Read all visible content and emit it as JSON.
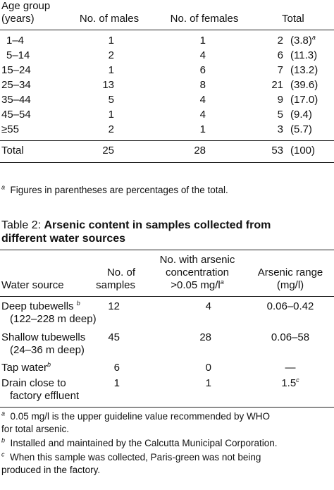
{
  "table1": {
    "headers": {
      "age_line1": "Age group",
      "age_line2": "(years)",
      "males": "No. of males",
      "females": "No. of females",
      "total": "Total"
    },
    "rows": [
      {
        "age": "1–4",
        "males": "1",
        "females": "1",
        "total": "2",
        "pct": "(3.8)",
        "pct_note": "a"
      },
      {
        "age": "5–14",
        "males": "2",
        "females": "4",
        "total": "6",
        "pct": "(11.3)",
        "pct_note": ""
      },
      {
        "age": "15–24",
        "males": "1",
        "females": "6",
        "total": "7",
        "pct": "(13.2)",
        "pct_note": ""
      },
      {
        "age": "25–34",
        "males": "13",
        "females": "8",
        "total": "21",
        "pct": "(39.6)",
        "pct_note": ""
      },
      {
        "age": "35–44",
        "males": "5",
        "females": "4",
        "total": "9",
        "pct": "(17.0)",
        "pct_note": ""
      },
      {
        "age": "45–54",
        "males": "1",
        "females": "4",
        "total": "5",
        "pct": "(9.4)",
        "pct_note": ""
      },
      {
        "age": "≥55",
        "males": "2",
        "females": "1",
        "total": "3",
        "pct": "(5.7)",
        "pct_note": ""
      }
    ],
    "total_row": {
      "label": "Total",
      "males": "25",
      "females": "28",
      "total": "53",
      "pct": "(100)"
    },
    "footnote_mark": "a",
    "footnote": "Figures in parentheses are percentages of the total."
  },
  "table2": {
    "caption_prefix": "Table 2: ",
    "caption_bold_line1": "Arsenic content in samples collected from",
    "caption_bold_line2": "different water sources",
    "headers": {
      "source": "Water source",
      "samples_line1": "No. of",
      "samples_line2": "samples",
      "arsenic_line1": "No. with arsenic",
      "arsenic_line2": "concentration",
      "arsenic_line3": ">0.05 mg/l",
      "arsenic_line3_mark": "a",
      "range_line1": "Arsenic range",
      "range_line2": "(mg/l)"
    },
    "rows": [
      {
        "source": "Deep tubewells ",
        "source_mark": "b",
        "source_sub": "(122–228 m deep)",
        "samples": "12",
        "arsenic": "4",
        "range": "0.06–0.42",
        "range_mark": ""
      },
      {
        "source": "Shallow tubewells",
        "source_mark": "",
        "source_sub": "(24–36 m deep)",
        "samples": "45",
        "arsenic": "28",
        "range": "0.06–58",
        "range_mark": ""
      },
      {
        "source": "Tap water",
        "source_mark": "b",
        "source_sub": "",
        "samples": "6",
        "arsenic": "0",
        "range": "—",
        "range_mark": ""
      },
      {
        "source": "Drain close to",
        "source_mark": "",
        "source_sub": "factory effluent",
        "samples": "1",
        "arsenic": "1",
        "range": "1.5",
        "range_mark": "c"
      }
    ],
    "footnotes": [
      {
        "mark": "a",
        "line1": "0.05 mg/l is the upper guideline value recommended by WHO",
        "line2": "for total arsenic."
      },
      {
        "mark": "b",
        "line1": "Installed and maintained by the Calcutta Municipal Corporation.",
        "line2": ""
      },
      {
        "mark": "c",
        "line1": "When this sample was collected, Paris-green was not being",
        "line2": "produced in the factory."
      }
    ]
  }
}
